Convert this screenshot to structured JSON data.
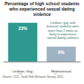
{
  "chart_data": {
    "type": "bar",
    "title": "Percentage of high school students who experienced sexual dating violence",
    "categories": [
      "Lesbian, Gay, and Bisexual Students",
      "Heterosexual Students"
    ],
    "values": [
      23,
      9
    ],
    "value_labels": [
      "23%",
      "9%"
    ],
    "colors": [
      "#2e9a8f",
      "#9fb3c4"
    ],
    "ylim": [
      0,
      25
    ],
    "tick_labels": "x",
    "data_labels": true,
    "grid": false,
    "annotation": "Lesbian, gay, and bisexual students were more than 2 times as likely to experience sexual dating violence",
    "source": "Source: CDC, Youth Risk Behavior Survey, 2015"
  }
}
